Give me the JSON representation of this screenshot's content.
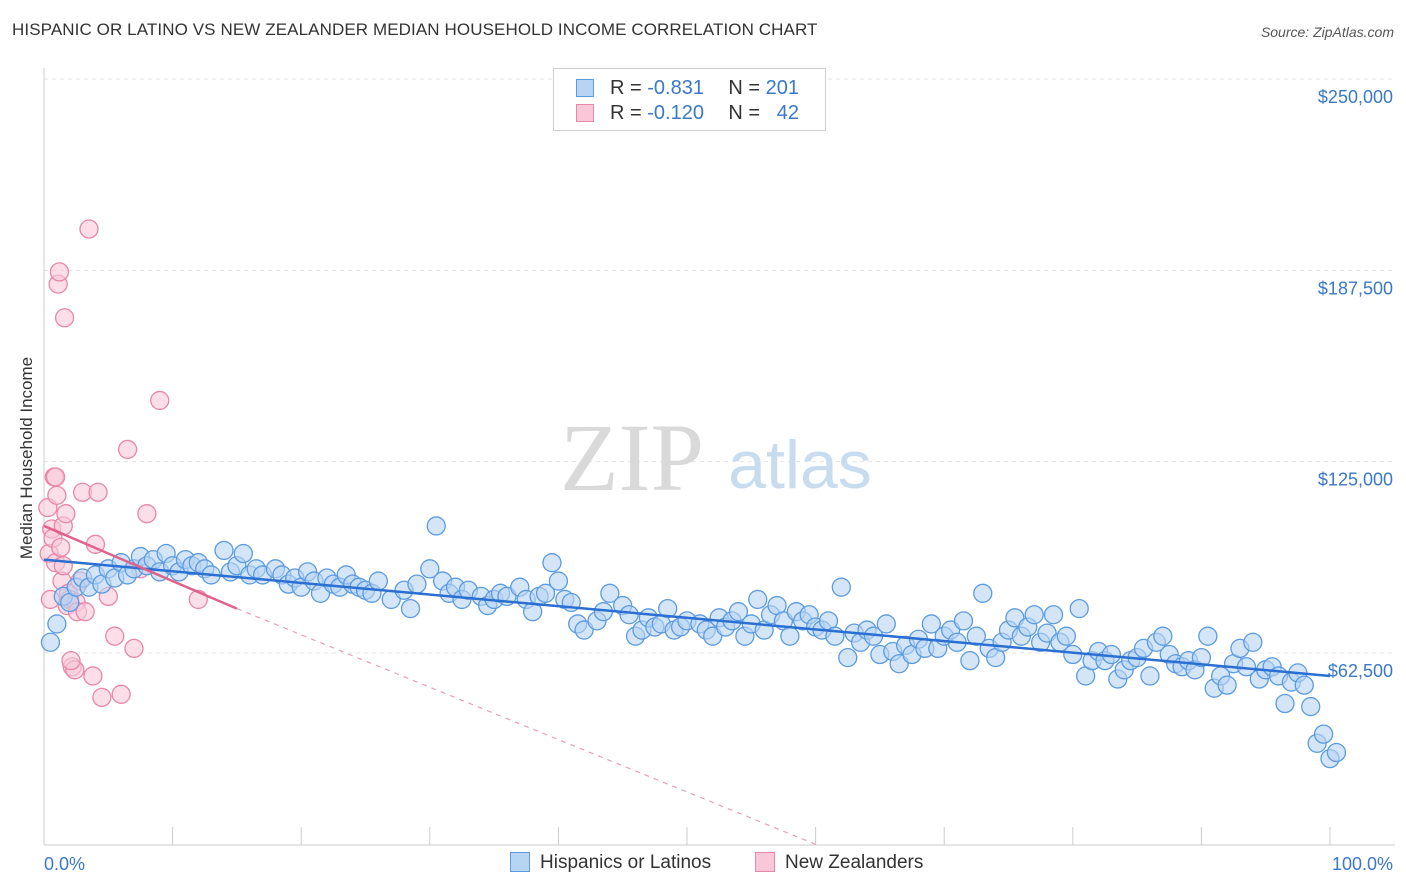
{
  "header": {
    "title": "HISPANIC OR LATINO VS NEW ZEALANDER MEDIAN HOUSEHOLD INCOME CORRELATION CHART",
    "source": "Source: ZipAtlas.com"
  },
  "watermark": {
    "zip": "ZIP",
    "atlas": "atlas"
  },
  "legend": {
    "rows": [
      {
        "r_label": "R =",
        "r_value": "-0.831",
        "n_label": "N =",
        "n_value": "201",
        "color": "#5b9be0",
        "fill": "#b8d4f3"
      },
      {
        "r_label": "R =",
        "r_value": "-0.120",
        "n_label": "N =",
        "n_value": "42",
        "color": "#e887a7",
        "fill": "#f8c8d8"
      }
    ]
  },
  "bottom_legend": {
    "items": [
      {
        "label": "Hispanics or Latinos",
        "color": "#5b9be0",
        "fill": "#b8d4f3"
      },
      {
        "label": "New Zealanders",
        "color": "#e887a7",
        "fill": "#f8c8d8"
      }
    ]
  },
  "chart_data": {
    "type": "scatter",
    "title": "HISPANIC OR LATINO VS NEW ZEALANDER MEDIAN HOUSEHOLD INCOME CORRELATION CHART",
    "xlabel": "",
    "ylabel": "Median Household Income",
    "xlim": [
      0,
      100
    ],
    "ylim": [
      0,
      260000
    ],
    "x_tick_labels": [
      "0.0%",
      "100.0%"
    ],
    "y_ticks": [
      62500,
      125000,
      187500,
      250000
    ],
    "y_tick_labels": [
      "$62,500",
      "$125,000",
      "$187,500",
      "$250,000"
    ],
    "grid": "horizontal dashed",
    "legend_position": "top-center",
    "series": [
      {
        "name": "Hispanics or Latinos",
        "color": "#5b9be0",
        "fill": "#b8d4f3",
        "trend": {
          "x0": 0,
          "y0": 93000,
          "x1": 100,
          "y1": 55000
        },
        "points": [
          [
            0.5,
            66000
          ],
          [
            1,
            72000
          ],
          [
            1.5,
            81000
          ],
          [
            2,
            79000
          ],
          [
            2.5,
            84000
          ],
          [
            3,
            87000
          ],
          [
            3.5,
            84000
          ],
          [
            4,
            88000
          ],
          [
            4.5,
            85000
          ],
          [
            5,
            90000
          ],
          [
            5.5,
            87000
          ],
          [
            6,
            92000
          ],
          [
            6.5,
            88000
          ],
          [
            7,
            90000
          ],
          [
            7.5,
            94000
          ],
          [
            8,
            91000
          ],
          [
            8.5,
            93000
          ],
          [
            9,
            89000
          ],
          [
            9.5,
            95000
          ],
          [
            10,
            91000
          ],
          [
            10.5,
            89000
          ],
          [
            11,
            93000
          ],
          [
            11.5,
            91000
          ],
          [
            12,
            92000
          ],
          [
            12.5,
            90000
          ],
          [
            13,
            88000
          ],
          [
            14,
            96000
          ],
          [
            14.5,
            89000
          ],
          [
            15,
            91000
          ],
          [
            15.5,
            95000
          ],
          [
            16,
            88000
          ],
          [
            16.5,
            90000
          ],
          [
            17,
            88000
          ],
          [
            18,
            90000
          ],
          [
            18.5,
            88000
          ],
          [
            19,
            85000
          ],
          [
            19.5,
            87000
          ],
          [
            20,
            84000
          ],
          [
            20.5,
            89000
          ],
          [
            21,
            86000
          ],
          [
            21.5,
            82000
          ],
          [
            22,
            87000
          ],
          [
            22.5,
            85000
          ],
          [
            23,
            84000
          ],
          [
            23.5,
            88000
          ],
          [
            24,
            85000
          ],
          [
            24.5,
            84000
          ],
          [
            25,
            83000
          ],
          [
            25.5,
            82000
          ],
          [
            26,
            86000
          ],
          [
            27,
            80000
          ],
          [
            28,
            83000
          ],
          [
            28.5,
            77000
          ],
          [
            29,
            85000
          ],
          [
            30,
            90000
          ],
          [
            30.5,
            104000
          ],
          [
            31,
            86000
          ],
          [
            31.5,
            82000
          ],
          [
            32,
            84000
          ],
          [
            32.5,
            80000
          ],
          [
            33,
            83000
          ],
          [
            34,
            81000
          ],
          [
            34.5,
            78000
          ],
          [
            35,
            80000
          ],
          [
            35.5,
            82000
          ],
          [
            36,
            81000
          ],
          [
            37,
            84000
          ],
          [
            37.5,
            80000
          ],
          [
            38,
            76000
          ],
          [
            38.5,
            81000
          ],
          [
            39,
            82000
          ],
          [
            39.5,
            92000
          ],
          [
            40,
            86000
          ],
          [
            40.5,
            80000
          ],
          [
            41,
            79000
          ],
          [
            41.5,
            72000
          ],
          [
            42,
            70000
          ],
          [
            43,
            73000
          ],
          [
            43.5,
            76000
          ],
          [
            44,
            82000
          ],
          [
            45,
            78000
          ],
          [
            45.5,
            75000
          ],
          [
            46,
            68000
          ],
          [
            46.5,
            70000
          ],
          [
            47,
            74000
          ],
          [
            47.5,
            71000
          ],
          [
            48,
            72000
          ],
          [
            48.5,
            77000
          ],
          [
            49,
            70000
          ],
          [
            49.5,
            71000
          ],
          [
            50,
            73000
          ],
          [
            51,
            72000
          ],
          [
            51.5,
            70000
          ],
          [
            52,
            68000
          ],
          [
            52.5,
            74000
          ],
          [
            53,
            71000
          ],
          [
            53.5,
            73000
          ],
          [
            54,
            76000
          ],
          [
            54.5,
            68000
          ],
          [
            55,
            72000
          ],
          [
            55.5,
            80000
          ],
          [
            56,
            70000
          ],
          [
            56.5,
            75000
          ],
          [
            57,
            78000
          ],
          [
            57.5,
            73000
          ],
          [
            58,
            68000
          ],
          [
            58.5,
            76000
          ],
          [
            59,
            73000
          ],
          [
            59.5,
            75000
          ],
          [
            60,
            71000
          ],
          [
            60.5,
            70000
          ],
          [
            61,
            73000
          ],
          [
            61.5,
            68000
          ],
          [
            62,
            84000
          ],
          [
            62.5,
            61000
          ],
          [
            63,
            69000
          ],
          [
            63.5,
            66000
          ],
          [
            64,
            70000
          ],
          [
            64.5,
            68000
          ],
          [
            65,
            62000
          ],
          [
            65.5,
            72000
          ],
          [
            66,
            63000
          ],
          [
            66.5,
            59000
          ],
          [
            67,
            65000
          ],
          [
            67.5,
            62000
          ],
          [
            68,
            67000
          ],
          [
            68.5,
            64000
          ],
          [
            69,
            72000
          ],
          [
            69.5,
            64000
          ],
          [
            70,
            68000
          ],
          [
            70.5,
            70000
          ],
          [
            71,
            66000
          ],
          [
            71.5,
            73000
          ],
          [
            72,
            60000
          ],
          [
            72.5,
            68000
          ],
          [
            73,
            82000
          ],
          [
            73.5,
            64000
          ],
          [
            74,
            61000
          ],
          [
            74.5,
            66000
          ],
          [
            75,
            70000
          ],
          [
            75.5,
            74000
          ],
          [
            76,
            68000
          ],
          [
            76.5,
            71000
          ],
          [
            77,
            75000
          ],
          [
            77.5,
            66000
          ],
          [
            78,
            69000
          ],
          [
            78.5,
            75000
          ],
          [
            79,
            66000
          ],
          [
            79.5,
            68000
          ],
          [
            80,
            62000
          ],
          [
            80.5,
            77000
          ],
          [
            81,
            55000
          ],
          [
            81.5,
            60000
          ],
          [
            82,
            63000
          ],
          [
            82.5,
            60000
          ],
          [
            83,
            62000
          ],
          [
            83.5,
            54000
          ],
          [
            84,
            57000
          ],
          [
            84.5,
            60000
          ],
          [
            85,
            61000
          ],
          [
            85.5,
            64000
          ],
          [
            86,
            55000
          ],
          [
            86.5,
            66000
          ],
          [
            87,
            68000
          ],
          [
            87.5,
            62000
          ],
          [
            88,
            59000
          ],
          [
            88.5,
            58000
          ],
          [
            89,
            60000
          ],
          [
            89.5,
            57000
          ],
          [
            90,
            61000
          ],
          [
            90.5,
            68000
          ],
          [
            91,
            51000
          ],
          [
            91.5,
            55000
          ],
          [
            92,
            52000
          ],
          [
            92.5,
            59000
          ],
          [
            93,
            64000
          ],
          [
            93.5,
            58000
          ],
          [
            94,
            66000
          ],
          [
            94.5,
            54000
          ],
          [
            95,
            57000
          ],
          [
            95.5,
            58000
          ],
          [
            96,
            55000
          ],
          [
            96.5,
            46000
          ],
          [
            97,
            53000
          ],
          [
            97.5,
            56000
          ],
          [
            98,
            52000
          ],
          [
            98.5,
            45000
          ],
          [
            99,
            33000
          ],
          [
            99.5,
            36000
          ],
          [
            100,
            28000
          ],
          [
            100.5,
            30000
          ]
        ]
      },
      {
        "name": "New Zealanders",
        "color": "#e887a7",
        "fill": "#f8c8d8",
        "trend": {
          "x0": 0,
          "y0": 104000,
          "x1": 15,
          "y1": 77000
        },
        "trend_extension": {
          "x0": 15,
          "y0": 77000,
          "x1": 60,
          "y1": 0
        },
        "points": [
          [
            0.3,
            110000
          ],
          [
            0.4,
            95000
          ],
          [
            0.5,
            80000
          ],
          [
            0.6,
            103000
          ],
          [
            0.7,
            100000
          ],
          [
            0.8,
            120000
          ],
          [
            0.9,
            92000
          ],
          [
            1,
            114000
          ],
          [
            1.1,
            183000
          ],
          [
            1.2,
            187000
          ],
          [
            1.3,
            97000
          ],
          [
            1.4,
            86000
          ],
          [
            1.5,
            104000
          ],
          [
            1.6,
            172000
          ],
          [
            1.7,
            108000
          ],
          [
            1.8,
            78000
          ],
          [
            1.9,
            82000
          ],
          [
            2,
            80000
          ],
          [
            2.2,
            58000
          ],
          [
            2.4,
            57000
          ],
          [
            2.5,
            79000
          ],
          [
            2.6,
            76000
          ],
          [
            2.8,
            86000
          ],
          [
            3,
            115000
          ],
          [
            3.2,
            76000
          ],
          [
            3.5,
            201000
          ],
          [
            3.8,
            55000
          ],
          [
            4,
            98000
          ],
          [
            4.2,
            115000
          ],
          [
            4.5,
            48000
          ],
          [
            5,
            81000
          ],
          [
            5.5,
            68000
          ],
          [
            6,
            49000
          ],
          [
            6.5,
            129000
          ],
          [
            7,
            64000
          ],
          [
            7.5,
            90000
          ],
          [
            8,
            108000
          ],
          [
            9,
            145000
          ],
          [
            12,
            80000
          ],
          [
            2.1,
            60000
          ],
          [
            0.9,
            120000
          ],
          [
            1.5,
            91000
          ]
        ]
      }
    ]
  }
}
